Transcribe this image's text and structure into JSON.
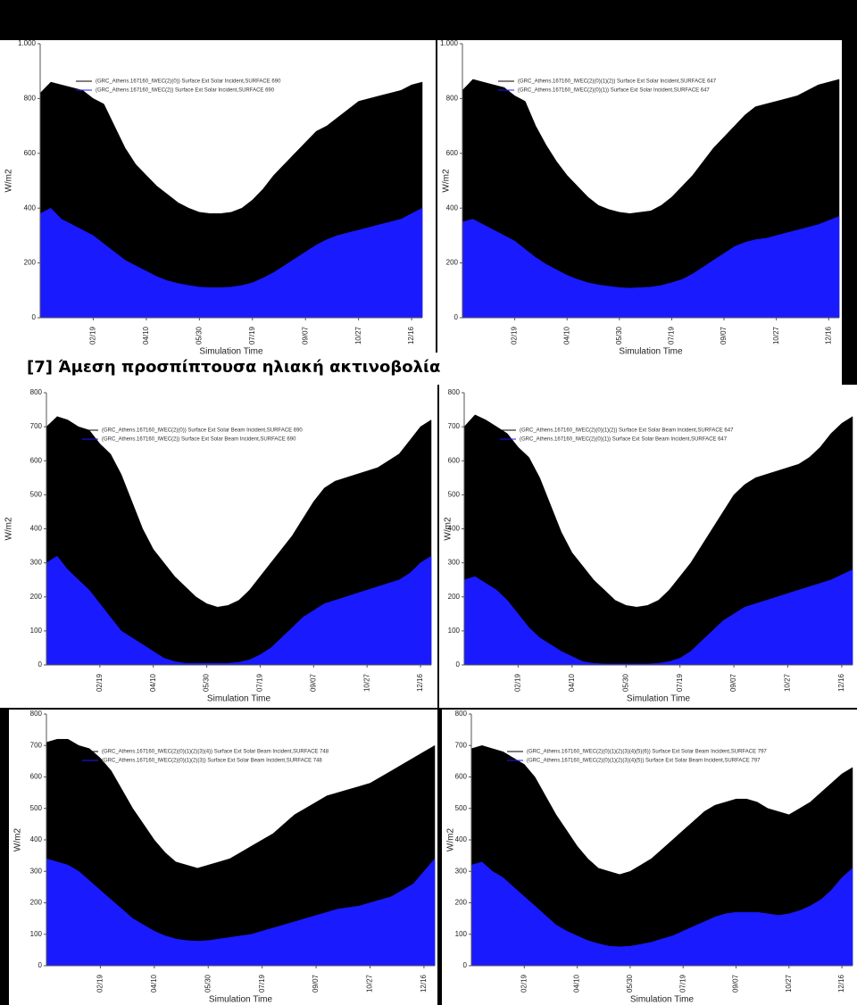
{
  "heading": "[7] Άμεση προσπίπτουσα ηλιακή ακτινοβολία",
  "chart_data": [
    {
      "type": "area",
      "x_label": "Simulation Time",
      "y_label": "W/m2",
      "categories": [
        null,
        null,
        null,
        null,
        null,
        "02/19",
        null,
        null,
        null,
        null,
        "04/10",
        null,
        null,
        null,
        null,
        "05/30",
        null,
        null,
        null,
        null,
        "07/19",
        null,
        null,
        null,
        null,
        "09/07",
        null,
        null,
        null,
        null,
        "10/27",
        null,
        null,
        null,
        null,
        "12/16",
        null
      ],
      "ylim": [
        0,
        1000
      ],
      "yticks": [
        0,
        200,
        400,
        600,
        800,
        {
          "value": 1000,
          "label": "1.000"
        }
      ],
      "series": [
        {
          "name": "(GRC_Athens.167160_IWEC(2)(0)) Surface Ext Solar Incident,SURFACE 690",
          "color": "#000000",
          "values": [
            820,
            860,
            850,
            840,
            830,
            800,
            780,
            700,
            620,
            560,
            520,
            480,
            450,
            420,
            400,
            385,
            380,
            380,
            385,
            400,
            430,
            470,
            520,
            560,
            600,
            640,
            680,
            700,
            730,
            760,
            790,
            800,
            810,
            820,
            830,
            850,
            860
          ]
        },
        {
          "name": "(GRC_Athens.167160_IWEC(2)) Surface Ext Solar Incident,SURFACE 690",
          "color": "#1a1aff",
          "values": [
            380,
            400,
            360,
            340,
            320,
            300,
            270,
            240,
            210,
            190,
            170,
            150,
            135,
            125,
            118,
            112,
            110,
            110,
            112,
            118,
            128,
            145,
            165,
            190,
            215,
            240,
            265,
            285,
            300,
            310,
            320,
            330,
            340,
            350,
            360,
            380,
            400
          ]
        }
      ]
    },
    {
      "type": "area",
      "x_label": "Simulation Time",
      "y_label": "W/m2",
      "categories": [
        null,
        null,
        null,
        null,
        null,
        "02/19",
        null,
        null,
        null,
        null,
        "04/10",
        null,
        null,
        null,
        null,
        "05/30",
        null,
        null,
        null,
        null,
        "07/19",
        null,
        null,
        null,
        null,
        "09/07",
        null,
        null,
        null,
        null,
        "10/27",
        null,
        null,
        null,
        null,
        "12/16",
        null
      ],
      "ylim": [
        0,
        1000
      ],
      "yticks": [
        0,
        200,
        400,
        600,
        800,
        {
          "value": 1000,
          "label": "1.000"
        }
      ],
      "series": [
        {
          "name": "(GRC_Athens.167160_IWEC(2)(0)(1)(2)) Surface Ext Solar Incident,SURFACE 647",
          "color": "#000000",
          "values": [
            830,
            870,
            860,
            850,
            840,
            810,
            790,
            700,
            630,
            570,
            520,
            480,
            440,
            410,
            395,
            385,
            380,
            385,
            390,
            410,
            440,
            480,
            520,
            570,
            620,
            660,
            700,
            740,
            770,
            780,
            790,
            800,
            810,
            830,
            850,
            860,
            870
          ]
        },
        {
          "name": "(GRC_Athens.167160_IWEC(2)(0)(1)) Surface Ext Solar Incident,SURFACE 647",
          "color": "#1a1aff",
          "values": [
            350,
            360,
            340,
            320,
            300,
            280,
            250,
            220,
            195,
            175,
            155,
            140,
            128,
            120,
            115,
            110,
            108,
            110,
            112,
            118,
            128,
            140,
            160,
            185,
            210,
            235,
            260,
            275,
            285,
            290,
            300,
            310,
            320,
            330,
            340,
            355,
            370
          ]
        }
      ]
    },
    {
      "type": "area",
      "x_label": "Simulation Time",
      "y_label": "W/m2",
      "categories": [
        null,
        null,
        null,
        null,
        null,
        "02/19",
        null,
        null,
        null,
        null,
        "04/10",
        null,
        null,
        null,
        null,
        "05/30",
        null,
        null,
        null,
        null,
        "07/19",
        null,
        null,
        null,
        null,
        "09/07",
        null,
        null,
        null,
        null,
        "10/27",
        null,
        null,
        null,
        null,
        "12/16",
        null
      ],
      "ylim": [
        0,
        800
      ],
      "yticks": [
        0,
        100,
        200,
        300,
        400,
        500,
        600,
        700,
        800
      ],
      "series": [
        {
          "name": "(GRC_Athens.167160_IWEC(2)(0)) Surface Ext Solar Beam Incident,SURFACE 690",
          "color": "#000000",
          "values": [
            700,
            730,
            720,
            700,
            690,
            650,
            620,
            560,
            480,
            400,
            340,
            300,
            260,
            230,
            200,
            180,
            170,
            175,
            190,
            220,
            260,
            300,
            340,
            380,
            430,
            480,
            520,
            540,
            550,
            560,
            570,
            580,
            600,
            620,
            660,
            700,
            720
          ]
        },
        {
          "name": "(GRC_Athens.167160_IWEC(2)) Surface Ext Solar Beam Incident,SURFACE 690",
          "color": "#1a1aff",
          "values": [
            300,
            320,
            280,
            250,
            220,
            180,
            140,
            100,
            80,
            60,
            40,
            20,
            10,
            5,
            5,
            5,
            5,
            5,
            8,
            15,
            30,
            50,
            80,
            110,
            140,
            160,
            180,
            190,
            200,
            210,
            220,
            230,
            240,
            250,
            270,
            300,
            320
          ]
        }
      ]
    },
    {
      "type": "area",
      "x_label": "Simulation Time",
      "y_label": "W/m2",
      "categories": [
        null,
        null,
        null,
        null,
        null,
        "02/19",
        null,
        null,
        null,
        null,
        "04/10",
        null,
        null,
        null,
        null,
        "05/30",
        null,
        null,
        null,
        null,
        "07/19",
        null,
        null,
        null,
        null,
        "09/07",
        null,
        null,
        null,
        null,
        "10/27",
        null,
        null,
        null,
        null,
        "12/16",
        null
      ],
      "ylim": [
        0,
        800
      ],
      "yticks": [
        0,
        100,
        200,
        300,
        400,
        500,
        600,
        700,
        800
      ],
      "series": [
        {
          "name": "(GRC_Athens.167160_IWEC(2)(0)(1)(2)) Surface Ext Solar Beam Incident,SURFACE 647",
          "color": "#000000",
          "values": [
            700,
            735,
            720,
            700,
            680,
            640,
            610,
            550,
            470,
            390,
            330,
            290,
            250,
            220,
            190,
            175,
            170,
            175,
            190,
            220,
            260,
            300,
            350,
            400,
            450,
            500,
            530,
            550,
            560,
            570,
            580,
            590,
            610,
            640,
            680,
            710,
            730
          ]
        },
        {
          "name": "(GRC_Athens.167160_IWEC(2)(0)(1)) Surface Ext Solar Beam Incident,SURFACE 647",
          "color": "#1a1aff",
          "values": [
            250,
            260,
            240,
            220,
            190,
            150,
            110,
            80,
            60,
            40,
            25,
            10,
            5,
            3,
            3,
            3,
            3,
            3,
            5,
            10,
            20,
            40,
            70,
            100,
            130,
            150,
            170,
            180,
            190,
            200,
            210,
            220,
            230,
            240,
            250,
            265,
            280
          ]
        }
      ]
    },
    {
      "type": "area",
      "x_label": "Simulation Time",
      "y_label": "W/m2",
      "categories": [
        null,
        null,
        null,
        null,
        null,
        "02/19",
        null,
        null,
        null,
        null,
        "04/10",
        null,
        null,
        null,
        null,
        "05/30",
        null,
        null,
        null,
        null,
        "07/19",
        null,
        null,
        null,
        null,
        "09/07",
        null,
        null,
        null,
        null,
        "10/27",
        null,
        null,
        null,
        null,
        "12/16",
        null
      ],
      "ylim": [
        0,
        800
      ],
      "yticks": [
        0,
        100,
        200,
        300,
        400,
        500,
        600,
        700,
        800
      ],
      "series": [
        {
          "name": "(GRC_Athens.167160_IWEC(2)(0)(1)(2)(3)(4)) Surface Ext Solar Beam Incident,SURFACE 748",
          "color": "#000000",
          "values": [
            710,
            720,
            720,
            700,
            690,
            660,
            620,
            560,
            500,
            450,
            400,
            360,
            330,
            320,
            310,
            320,
            330,
            340,
            360,
            380,
            400,
            420,
            450,
            480,
            500,
            520,
            540,
            550,
            560,
            570,
            580,
            600,
            620,
            640,
            660,
            680,
            700
          ]
        },
        {
          "name": "(GRC_Athens.167160_IWEC(2)(0)(1)(2)(3)) Surface Ext Solar Beam Incident,SURFACE 748",
          "color": "#1a1aff",
          "values": [
            340,
            330,
            320,
            300,
            270,
            240,
            210,
            180,
            150,
            130,
            110,
            95,
            85,
            80,
            78,
            80,
            85,
            90,
            95,
            100,
            110,
            120,
            130,
            140,
            150,
            160,
            170,
            180,
            185,
            190,
            200,
            210,
            220,
            240,
            260,
            300,
            340
          ]
        }
      ]
    },
    {
      "type": "area",
      "x_label": "Simulation Time",
      "y_label": "W/m2",
      "categories": [
        null,
        null,
        null,
        null,
        null,
        "02/19",
        null,
        null,
        null,
        null,
        "04/10",
        null,
        null,
        null,
        null,
        "05/30",
        null,
        null,
        null,
        null,
        "07/19",
        null,
        null,
        null,
        null,
        "09/07",
        null,
        null,
        null,
        null,
        "10/27",
        null,
        null,
        null,
        null,
        "12/16",
        null
      ],
      "ylim": [
        0,
        800
      ],
      "yticks": [
        0,
        100,
        200,
        300,
        400,
        500,
        600,
        700,
        800
      ],
      "series": [
        {
          "name": "(GRC_Athens.167160_IWEC(2)(0)(1)(2)(3)(4)(5)(6)) Surface Ext Solar Beam Incident,SURFACE 797",
          "color": "#000000",
          "values": [
            690,
            700,
            690,
            680,
            660,
            640,
            600,
            540,
            480,
            430,
            380,
            340,
            310,
            300,
            290,
            300,
            320,
            340,
            370,
            400,
            430,
            460,
            490,
            510,
            520,
            530,
            530,
            520,
            500,
            490,
            480,
            500,
            520,
            550,
            580,
            610,
            630
          ]
        },
        {
          "name": "(GRC_Athens.167160_IWEC(2)(0)(1)(2)(3)(4)(5)) Surface Ext Solar Beam Incident,SURFACE 797",
          "color": "#1a1aff",
          "values": [
            320,
            330,
            300,
            280,
            250,
            220,
            190,
            160,
            130,
            110,
            95,
            80,
            70,
            62,
            60,
            62,
            68,
            75,
            85,
            95,
            110,
            125,
            140,
            155,
            165,
            170,
            170,
            170,
            165,
            160,
            165,
            175,
            190,
            210,
            240,
            280,
            310
          ]
        }
      ]
    }
  ]
}
